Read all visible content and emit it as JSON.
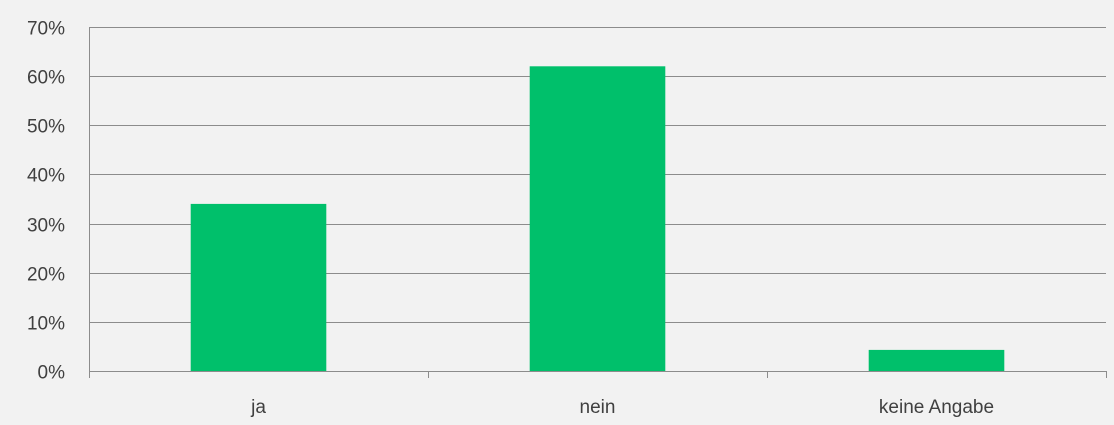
{
  "chart_data": {
    "type": "bar",
    "categories": [
      "ja",
      "nein",
      "keine Angabe"
    ],
    "values": [
      34,
      62,
      4.3
    ],
    "ylim": [
      0,
      70
    ],
    "yticks": [
      0,
      10,
      20,
      30,
      40,
      50,
      60,
      70
    ],
    "ytick_labels": [
      "0%",
      "10%",
      "20%",
      "30%",
      "40%",
      "50%",
      "60%",
      "70%"
    ],
    "grid": true,
    "bar_color": "#00c06b",
    "grid_color": "#8c8c8c",
    "axis_color": "#8c8c8c",
    "background_color": "#f2f2f2",
    "title": "",
    "xlabel": "",
    "ylabel": ""
  }
}
